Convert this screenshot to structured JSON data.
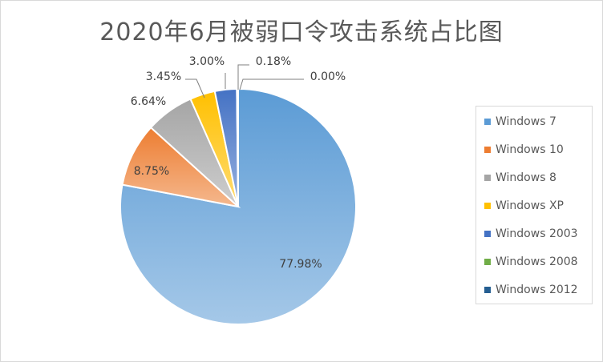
{
  "chart_data": {
    "type": "pie",
    "title": "2020年6月被弱口令攻击系统占比图",
    "categories": [
      "Windows 7",
      "Windows 10",
      "Windows 8",
      "Windows XP",
      "Windows 2003",
      "Windows 2008",
      "Windows 2012"
    ],
    "values": [
      77.98,
      8.75,
      6.64,
      3.45,
      3.0,
      0.18,
      0.0
    ],
    "labels": [
      "77.98%",
      "8.75%",
      "6.64%",
      "3.45%",
      "3.00%",
      "0.18%",
      "0.00%"
    ],
    "colors": [
      "#5b9bd5",
      "#ed7d31",
      "#a5a5a5",
      "#ffc000",
      "#4472c4",
      "#70ad47",
      "#255e91"
    ],
    "legend_position": "right"
  }
}
